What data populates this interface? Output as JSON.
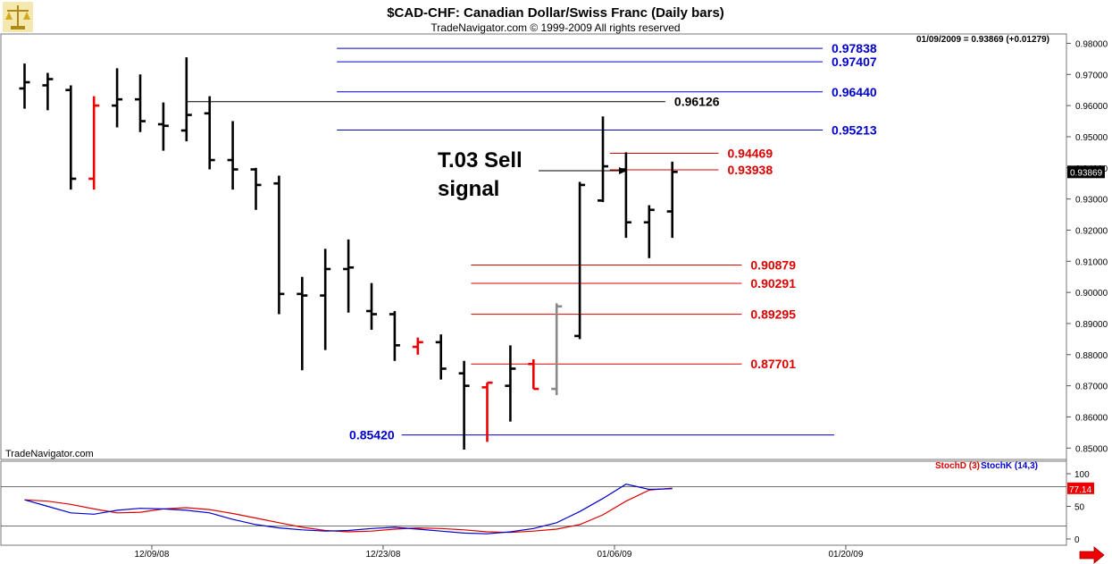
{
  "header": {
    "title": "$CAD-CHF:  Canadian Dollar/Swiss Franc  (Daily bars)",
    "copyright": "TradeNavigator.com © 1999-2009 All rights reserved"
  },
  "readout": "01/09/2009 = 0.93869 (+0.01279)",
  "watermark": "TradeNavigator.com",
  "annotation": {
    "line1": "T.03 Sell",
    "line2": "signal"
  },
  "icons": {
    "logo": "scales-logo-icon",
    "scroll": "red-arrow-right-icon"
  },
  "colors": {
    "up_bar": "#000000",
    "red_bar": "#ee0000",
    "gray_bar": "#888888",
    "blue_level": "#0000cc",
    "red_level": "#dd0000",
    "stoch_d": "#dd0000",
    "stoch_k": "#0000cc"
  },
  "chart_data": [
    {
      "type": "ohlc",
      "y_ticks": [
        "0.98000",
        "0.97000",
        "0.96000",
        "0.95000",
        "0.94000",
        "0.93000",
        "0.92000",
        "0.91000",
        "0.90000",
        "0.89000",
        "0.88000",
        "0.87000",
        "0.86000",
        "0.85000"
      ],
      "ylim": [
        0.8475,
        0.983
      ],
      "x_ticks": [
        {
          "label": "12/09/08",
          "bar": 5.5
        },
        {
          "label": "12/23/08",
          "bar": 15.5
        },
        {
          "label": "01/06/09",
          "bar": 25.5
        },
        {
          "label": "01/20/09",
          "bar": 35.5
        }
      ],
      "last_value_label": "0.93869",
      "bars": [
        {
          "o": 0.9655,
          "h": 0.9735,
          "l": 0.959,
          "c": 0.9675,
          "color": "black"
        },
        {
          "o": 0.9665,
          "h": 0.9705,
          "l": 0.9585,
          "c": 0.9685,
          "color": "black"
        },
        {
          "o": 0.965,
          "h": 0.9665,
          "l": 0.933,
          "c": 0.9365,
          "color": "black"
        },
        {
          "o": 0.9365,
          "h": 0.963,
          "l": 0.933,
          "c": 0.96,
          "color": "red"
        },
        {
          "o": 0.96,
          "h": 0.972,
          "l": 0.953,
          "c": 0.962,
          "color": "black"
        },
        {
          "o": 0.962,
          "h": 0.97,
          "l": 0.9515,
          "c": 0.955,
          "color": "black"
        },
        {
          "o": 0.954,
          "h": 0.961,
          "l": 0.9455,
          "c": 0.9535,
          "color": "black"
        },
        {
          "o": 0.952,
          "h": 0.9755,
          "l": 0.9485,
          "c": 0.957,
          "color": "black"
        },
        {
          "o": 0.9575,
          "h": 0.963,
          "l": 0.9395,
          "c": 0.9425,
          "color": "black"
        },
        {
          "o": 0.9425,
          "h": 0.955,
          "l": 0.933,
          "c": 0.9395,
          "color": "black"
        },
        {
          "o": 0.9395,
          "h": 0.94,
          "l": 0.9265,
          "c": 0.9345,
          "color": "black"
        },
        {
          "o": 0.935,
          "h": 0.9375,
          "l": 0.893,
          "c": 0.8995,
          "color": "black"
        },
        {
          "o": 0.8995,
          "h": 0.905,
          "l": 0.875,
          "c": 0.899,
          "color": "black"
        },
        {
          "o": 0.899,
          "h": 0.914,
          "l": 0.8815,
          "c": 0.9075,
          "color": "black"
        },
        {
          "o": 0.9075,
          "h": 0.917,
          "l": 0.8935,
          "c": 0.908,
          "color": "black"
        },
        {
          "o": 0.894,
          "h": 0.903,
          "l": 0.888,
          "c": 0.893,
          "color": "black"
        },
        {
          "o": 0.893,
          "h": 0.894,
          "l": 0.878,
          "c": 0.883,
          "color": "black"
        },
        {
          "o": 0.8825,
          "h": 0.8855,
          "l": 0.88,
          "c": 0.884,
          "color": "red"
        },
        {
          "o": 0.884,
          "h": 0.8865,
          "l": 0.872,
          "c": 0.8755,
          "color": "black"
        },
        {
          "o": 0.874,
          "h": 0.878,
          "l": 0.8495,
          "c": 0.87,
          "color": "black"
        },
        {
          "o": 0.8695,
          "h": 0.871,
          "l": 0.852,
          "c": 0.871,
          "color": "red"
        },
        {
          "o": 0.87,
          "h": 0.883,
          "l": 0.8585,
          "c": 0.8755,
          "color": "black"
        },
        {
          "o": 0.877,
          "h": 0.8785,
          "l": 0.869,
          "c": 0.869,
          "color": "red"
        },
        {
          "o": 0.869,
          "h": 0.8965,
          "l": 0.867,
          "c": 0.8955,
          "color": "gray"
        },
        {
          "o": 0.886,
          "h": 0.9355,
          "l": 0.885,
          "c": 0.9345,
          "color": "black"
        },
        {
          "o": 0.9295,
          "h": 0.9565,
          "l": 0.929,
          "c": 0.9405,
          "color": "black"
        },
        {
          "o": 0.9395,
          "h": 0.945,
          "l": 0.9175,
          "c": 0.9225,
          "color": "black"
        },
        {
          "o": 0.9225,
          "h": 0.928,
          "l": 0.911,
          "c": 0.9265,
          "color": "black"
        },
        {
          "o": 0.926,
          "h": 0.942,
          "l": 0.9175,
          "c": 0.9387,
          "color": "black"
        }
      ],
      "levels": [
        {
          "value": 0.97838,
          "label": "0.97838",
          "color": "blue",
          "from": 13.5,
          "to": 34.5
        },
        {
          "value": 0.97407,
          "label": "0.97407",
          "color": "blue",
          "from": 13.5,
          "to": 34.5
        },
        {
          "value": 0.9644,
          "label": "0.96440",
          "color": "blue",
          "from": 13.5,
          "to": 34.5
        },
        {
          "value": 0.96126,
          "label": "0.96126",
          "color": "black",
          "from": 7.0,
          "to": 27.7
        },
        {
          "value": 0.95213,
          "label": "0.95213",
          "color": "blue",
          "from": 13.5,
          "to": 34.5
        },
        {
          "value": 0.94469,
          "label": "0.94469",
          "color": "red",
          "from": 25.3,
          "to": 30.0
        },
        {
          "value": 0.93938,
          "label": "0.93938",
          "color": "red",
          "from": 25.3,
          "to": 30.0
        },
        {
          "value": 0.90879,
          "label": "0.90879",
          "color": "red",
          "from": 19.3,
          "to": 31.0
        },
        {
          "value": 0.90291,
          "label": "0.90291",
          "color": "red",
          "from": 19.3,
          "to": 31.0
        },
        {
          "value": 0.89295,
          "label": "0.89295",
          "color": "red",
          "from": 19.3,
          "to": 31.0
        },
        {
          "value": 0.87701,
          "label": "0.87701",
          "color": "red",
          "from": 19.3,
          "to": 31.0
        },
        {
          "value": 0.8542,
          "label": "0.85420",
          "color": "blue",
          "from": 16.3,
          "to": 35.0
        }
      ]
    },
    {
      "type": "line",
      "legend": [
        "StochD (3)",
        "StochK (14,3)"
      ],
      "y_ticks": [
        100,
        50,
        0
      ],
      "ylim": [
        0,
        100
      ],
      "reference_lines": [
        80,
        20
      ],
      "last_value_label": "77.14",
      "series": [
        {
          "name": "StochD (3)",
          "values": [
            60,
            58,
            53,
            46,
            40,
            41,
            46,
            48,
            45,
            39,
            32,
            25,
            18,
            13,
            11,
            12,
            15,
            17,
            16,
            14,
            11,
            10,
            12,
            15,
            22,
            37,
            58,
            75,
            78
          ]
        },
        {
          "name": "StochK (14,3)",
          "values": [
            60,
            50,
            40,
            38,
            44,
            47,
            46,
            44,
            40,
            30,
            22,
            17,
            14,
            12,
            13,
            16,
            18,
            15,
            12,
            9,
            8,
            11,
            16,
            25,
            42,
            62,
            84,
            76,
            77
          ]
        }
      ]
    }
  ]
}
